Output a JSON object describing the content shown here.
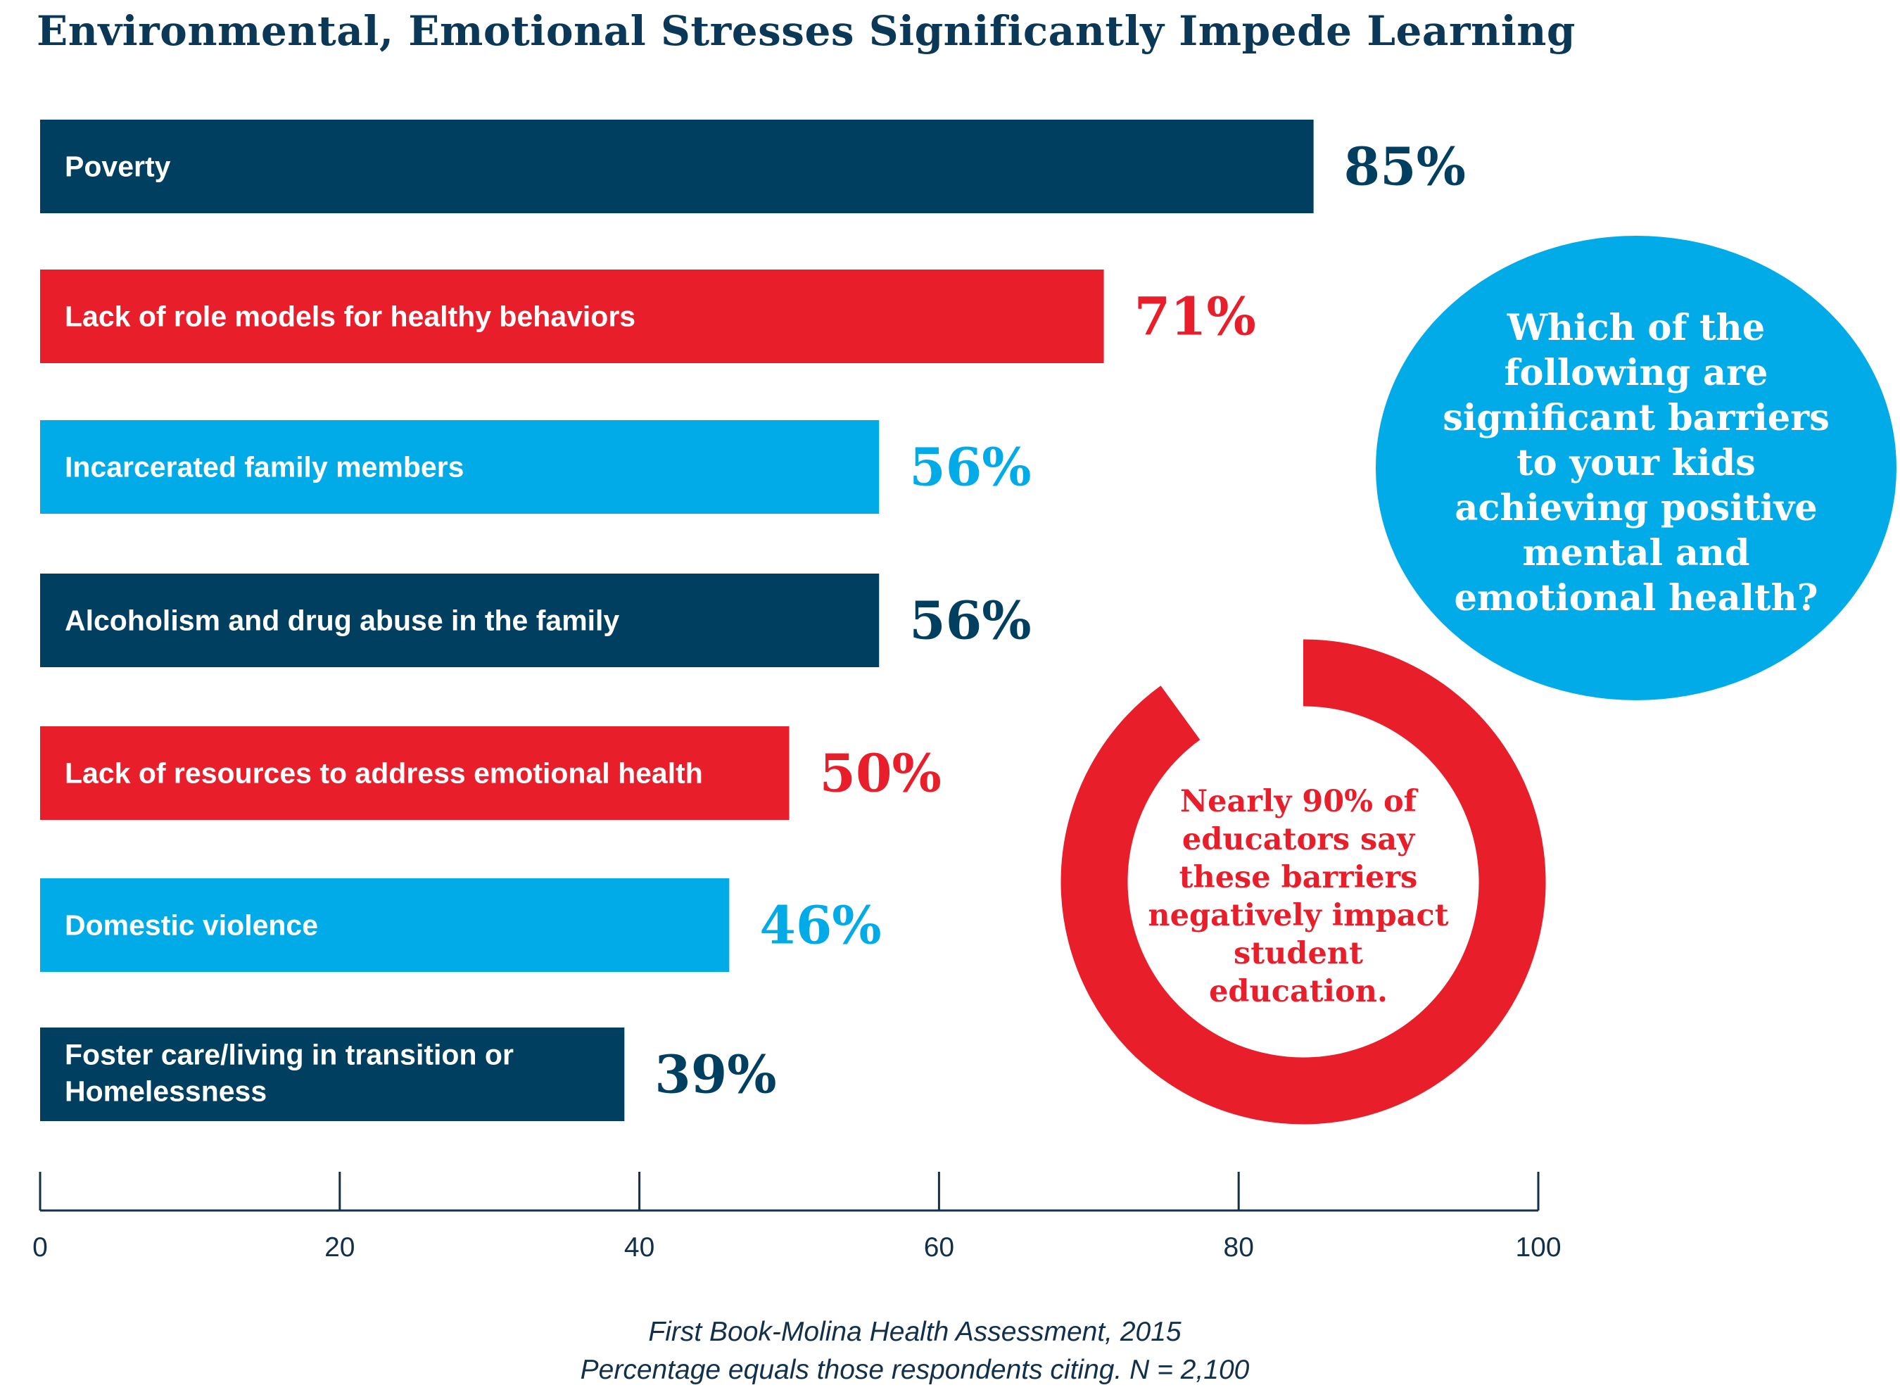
{
  "title": "Environmental, Emotional Stresses Significantly Impede Learning",
  "colors": {
    "navy": "#003f5f",
    "red": "#e91e2b",
    "blue": "#00abe8",
    "title": "#0b3856"
  },
  "chart_data": {
    "type": "bar",
    "orientation": "horizontal",
    "title": "Environmental, Emotional Stresses Significantly Impede Learning",
    "categories": [
      "Poverty",
      "Lack of role models for healthy behaviors",
      "Incarcerated family members",
      "Alcoholism and drug abuse in the family",
      "Lack of resources to address emotional health",
      "Domestic violence",
      "Foster care/living in transition or Homelessness"
    ],
    "values": [
      85,
      71,
      56,
      56,
      50,
      46,
      39
    ],
    "value_labels": [
      "85%",
      "71%",
      "56%",
      "56%",
      "50%",
      "46%",
      "39%"
    ],
    "bar_colors": [
      "#003f5f",
      "#e91e2b",
      "#00abe8",
      "#003f5f",
      "#e91e2b",
      "#00abe8",
      "#003f5f"
    ],
    "xlim": [
      0,
      100
    ],
    "xticks": [
      "0",
      "20",
      "40",
      "60",
      "80",
      "100"
    ],
    "xlabel": "",
    "ylabel": "",
    "grid": false
  },
  "callout_question": "Which of the following are significant barriers to your kids achieving positive mental and emotional health?",
  "ring_callout": {
    "text": "Nearly 90% of educators say these barriers negatively impact student education.",
    "value": 90
  },
  "source": {
    "line1": "First Book-Molina Health Assessment, 2015",
    "line2": "Percentage equals those respondents citing. N = 2,100"
  }
}
